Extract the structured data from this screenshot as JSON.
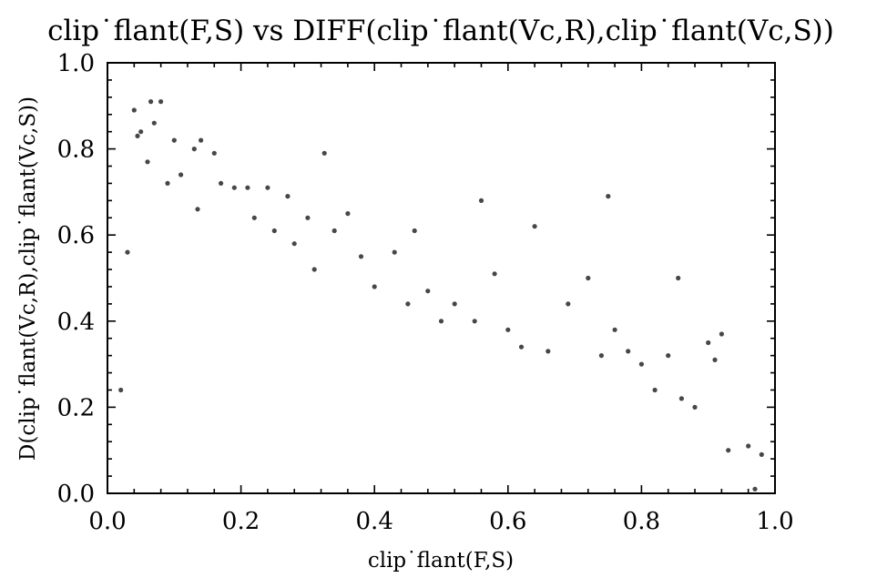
{
  "chart_data": {
    "type": "scatter",
    "title": "clip˙flant(F,S) vs DIFF(clip˙flant(Vc,R),clip˙flant(Vc,S))",
    "xlabel": "clip˙flant(F,S)",
    "ylabel": "D(clip˙flant(Vc,R),clip˙flant(Vc,S))",
    "xlim": [
      0.0,
      1.0
    ],
    "ylim": [
      0.0,
      1.0
    ],
    "x_ticks": [
      "0.0",
      "0.2",
      "0.4",
      "0.6",
      "0.8",
      "1.0"
    ],
    "y_ticks": [
      "0.0",
      "0.2",
      "0.4",
      "0.6",
      "0.8",
      "1.0"
    ],
    "grid": false,
    "legend": "none",
    "point_color": "#000000",
    "series": [
      {
        "values": [
          [
            0.02,
            0.24
          ],
          [
            0.03,
            0.56
          ],
          [
            0.04,
            0.89
          ],
          [
            0.045,
            0.83
          ],
          [
            0.05,
            0.84
          ],
          [
            0.06,
            0.77
          ],
          [
            0.065,
            0.91
          ],
          [
            0.07,
            0.86
          ],
          [
            0.08,
            0.91
          ],
          [
            0.09,
            0.72
          ],
          [
            0.1,
            0.82
          ],
          [
            0.11,
            0.74
          ],
          [
            0.13,
            0.8
          ],
          [
            0.135,
            0.66
          ],
          [
            0.14,
            0.82
          ],
          [
            0.16,
            0.79
          ],
          [
            0.17,
            0.72
          ],
          [
            0.19,
            0.71
          ],
          [
            0.21,
            0.71
          ],
          [
            0.22,
            0.64
          ],
          [
            0.24,
            0.71
          ],
          [
            0.25,
            0.61
          ],
          [
            0.27,
            0.69
          ],
          [
            0.28,
            0.58
          ],
          [
            0.3,
            0.64
          ],
          [
            0.31,
            0.52
          ],
          [
            0.325,
            0.79
          ],
          [
            0.34,
            0.61
          ],
          [
            0.36,
            0.65
          ],
          [
            0.38,
            0.55
          ],
          [
            0.4,
            0.48
          ],
          [
            0.43,
            0.56
          ],
          [
            0.45,
            0.44
          ],
          [
            0.46,
            0.61
          ],
          [
            0.48,
            0.47
          ],
          [
            0.5,
            0.4
          ],
          [
            0.52,
            0.44
          ],
          [
            0.55,
            0.4
          ],
          [
            0.56,
            0.68
          ],
          [
            0.58,
            0.51
          ],
          [
            0.6,
            0.38
          ],
          [
            0.62,
            0.34
          ],
          [
            0.64,
            0.62
          ],
          [
            0.66,
            0.33
          ],
          [
            0.69,
            0.44
          ],
          [
            0.72,
            0.5
          ],
          [
            0.74,
            0.32
          ],
          [
            0.75,
            0.69
          ],
          [
            0.76,
            0.38
          ],
          [
            0.78,
            0.33
          ],
          [
            0.8,
            0.3
          ],
          [
            0.82,
            0.24
          ],
          [
            0.84,
            0.32
          ],
          [
            0.855,
            0.5
          ],
          [
            0.86,
            0.22
          ],
          [
            0.88,
            0.2
          ],
          [
            0.9,
            0.35
          ],
          [
            0.91,
            0.31
          ],
          [
            0.92,
            0.37
          ],
          [
            0.93,
            0.1
          ],
          [
            0.96,
            0.11
          ],
          [
            0.98,
            0.09
          ],
          [
            0.97,
            0.01
          ]
        ]
      }
    ]
  }
}
